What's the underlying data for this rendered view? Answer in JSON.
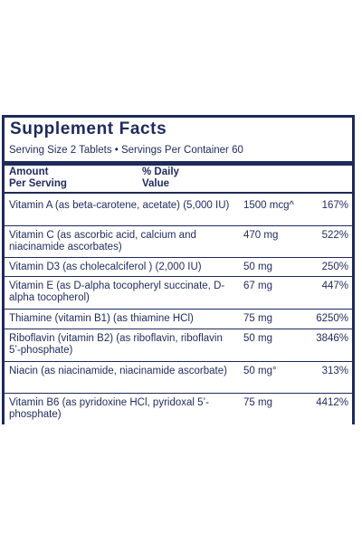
{
  "panel": {
    "title": "Supplement Facts",
    "serving_info": "Serving Size 2 Tablets • Servings Per Container 60",
    "header": {
      "amount_line1": "Amount",
      "amount_line2": "Per Serving",
      "dv_line1": "% Daily",
      "dv_line2": "Value"
    },
    "rows": [
      {
        "name": "Vitamin A (as beta-carotene, acetate) (5,000 IU)",
        "amount": "1500 mcg^",
        "dv": "167%"
      },
      {
        "name": "Vitamin C (as ascorbic acid, calcium and niacinamide ascorbates)",
        "amount": "470 mg",
        "dv": "522%"
      },
      {
        "name": "Vitamin D3 (as cholecalciferol ) (2,000 IU)",
        "amount": "50 mg",
        "dv": "250%"
      },
      {
        "name": "Vitamin E (as D-alpha tocopheryl succinate, D-alpha tocopherol)",
        "amount": "67 mg",
        "dv": "447%"
      },
      {
        "name": "Thiamine (vitamin B1) (as thiamine HCl)",
        "amount": "75 mg",
        "dv": "6250%"
      },
      {
        "name": "Riboflavin (vitamin B2) (as riboflavin, riboflavin 5’-phosphate)",
        "amount": "50 mg",
        "dv": "3846%"
      },
      {
        "name": "Niacin (as niacinamide, niacinamide ascorbate)",
        "amount": "50 mg°",
        "dv": "313%"
      },
      {
        "name": "Vitamin B6 (as pyridoxine HCl, pyridoxal 5’-phosphate)",
        "amount": "75 mg",
        "dv": "4412%"
      }
    ]
  },
  "colors": {
    "ink": "#1f2a5c",
    "background": "#ffffff"
  }
}
